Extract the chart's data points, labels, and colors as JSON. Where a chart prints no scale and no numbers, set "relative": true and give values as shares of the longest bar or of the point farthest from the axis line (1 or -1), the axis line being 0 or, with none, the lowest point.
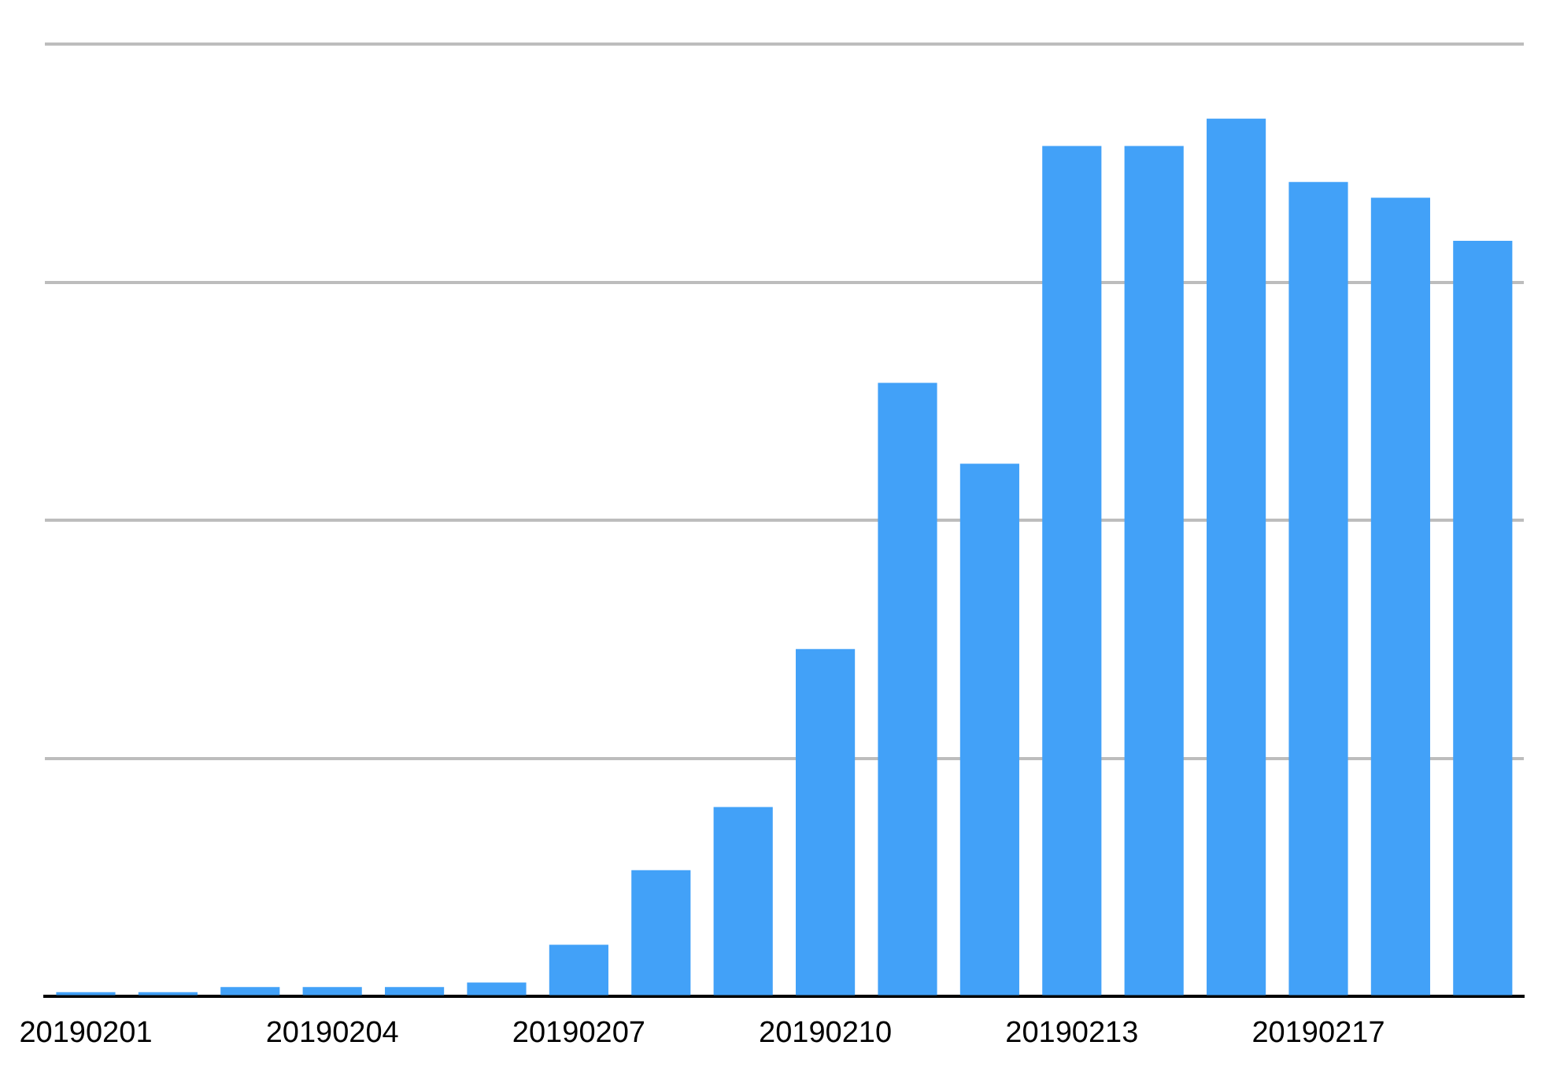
{
  "chart_data": {
    "type": "bar",
    "relative": true,
    "grid": "y",
    "legend": false,
    "categories": [
      "20190201",
      null,
      null,
      "20190204",
      null,
      null,
      "20190207",
      null,
      null,
      "20190210",
      null,
      null,
      "20190213",
      null,
      null,
      "20190217",
      null,
      null
    ],
    "series": [
      {
        "color": "#42a1f8",
        "values": [
          0.005,
          0.005,
          0.011,
          0.011,
          0.011,
          0.016,
          0.059,
          0.144,
          0.216,
          0.396,
          0.699,
          0.607,
          0.969,
          0.969,
          1,
          0.928,
          0.91,
          0.861
        ]
      }
    ]
  }
}
